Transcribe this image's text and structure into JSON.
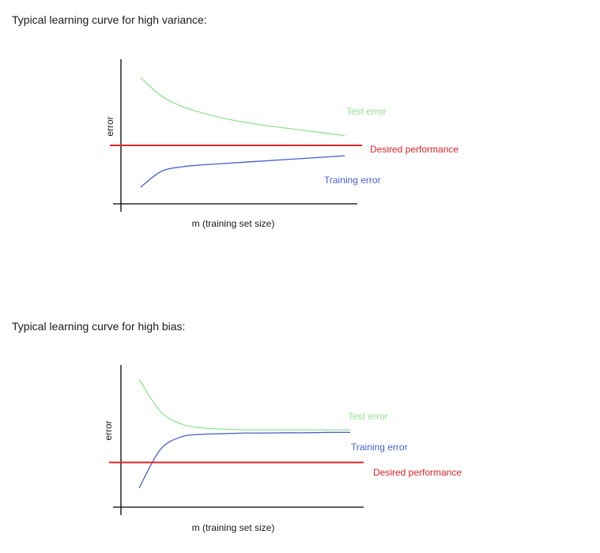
{
  "charts": [
    {
      "title": "Typical learning curve for high variance:"
    },
    {
      "title": "Typical learning curve for high bias:"
    }
  ],
  "chart_data": [
    {
      "type": "line",
      "title": "Typical learning curve for high variance:",
      "xlabel": "m (training set size)",
      "ylabel": "error",
      "grid": false,
      "legend": "inline-labels-right",
      "colors": {
        "axis": "#000000",
        "test": "#8fe38f",
        "training": "#4a5fd0",
        "desired": "#e0242a"
      },
      "x": [
        0,
        1,
        2,
        3,
        4,
        5,
        6,
        7,
        8,
        9,
        10
      ],
      "series": [
        {
          "name": "Test error",
          "color": "#8fe38f",
          "values": [
            0.92,
            0.78,
            0.7,
            0.65,
            0.61,
            0.58,
            0.555,
            0.535,
            0.515,
            0.495,
            0.475
          ]
        },
        {
          "name": "Training error",
          "color": "#4a5fd0",
          "values": [
            0.08,
            0.2,
            0.235,
            0.25,
            0.26,
            0.27,
            0.28,
            0.29,
            0.3,
            0.31,
            0.32
          ]
        },
        {
          "name": "Desired performance",
          "color": "#e0242a",
          "values": [
            0.4,
            0.4,
            0.4,
            0.4,
            0.4,
            0.4,
            0.4,
            0.4,
            0.4,
            0.4,
            0.4
          ]
        }
      ],
      "xlim": [
        0,
        10
      ],
      "ylim": [
        0,
        1
      ]
    },
    {
      "type": "line",
      "title": "Typical learning curve for high bias:",
      "xlabel": "m (training set size)",
      "ylabel": "error",
      "grid": false,
      "legend": "inline-labels-right",
      "colors": {
        "axis": "#000000",
        "test": "#8fe38f",
        "training": "#4a5fd0",
        "desired": "#e0242a"
      },
      "x": [
        0,
        1,
        2,
        3,
        4,
        5,
        6,
        7,
        8,
        9,
        10
      ],
      "series": [
        {
          "name": "Test error",
          "color": "#8fe38f",
          "values": [
            0.95,
            0.7,
            0.6,
            0.57,
            0.56,
            0.555,
            0.555,
            0.555,
            0.555,
            0.555,
            0.555
          ]
        },
        {
          "name": "Training error",
          "color": "#4a5fd0",
          "values": [
            0.1,
            0.4,
            0.5,
            0.52,
            0.525,
            0.53,
            0.53,
            0.532,
            0.532,
            0.535,
            0.535
          ]
        },
        {
          "name": "Desired performance",
          "color": "#e0242a",
          "values": [
            0.3,
            0.3,
            0.3,
            0.3,
            0.3,
            0.3,
            0.3,
            0.3,
            0.3,
            0.3,
            0.3
          ]
        }
      ],
      "xlim": [
        0,
        10
      ],
      "ylim": [
        0,
        1
      ]
    }
  ]
}
